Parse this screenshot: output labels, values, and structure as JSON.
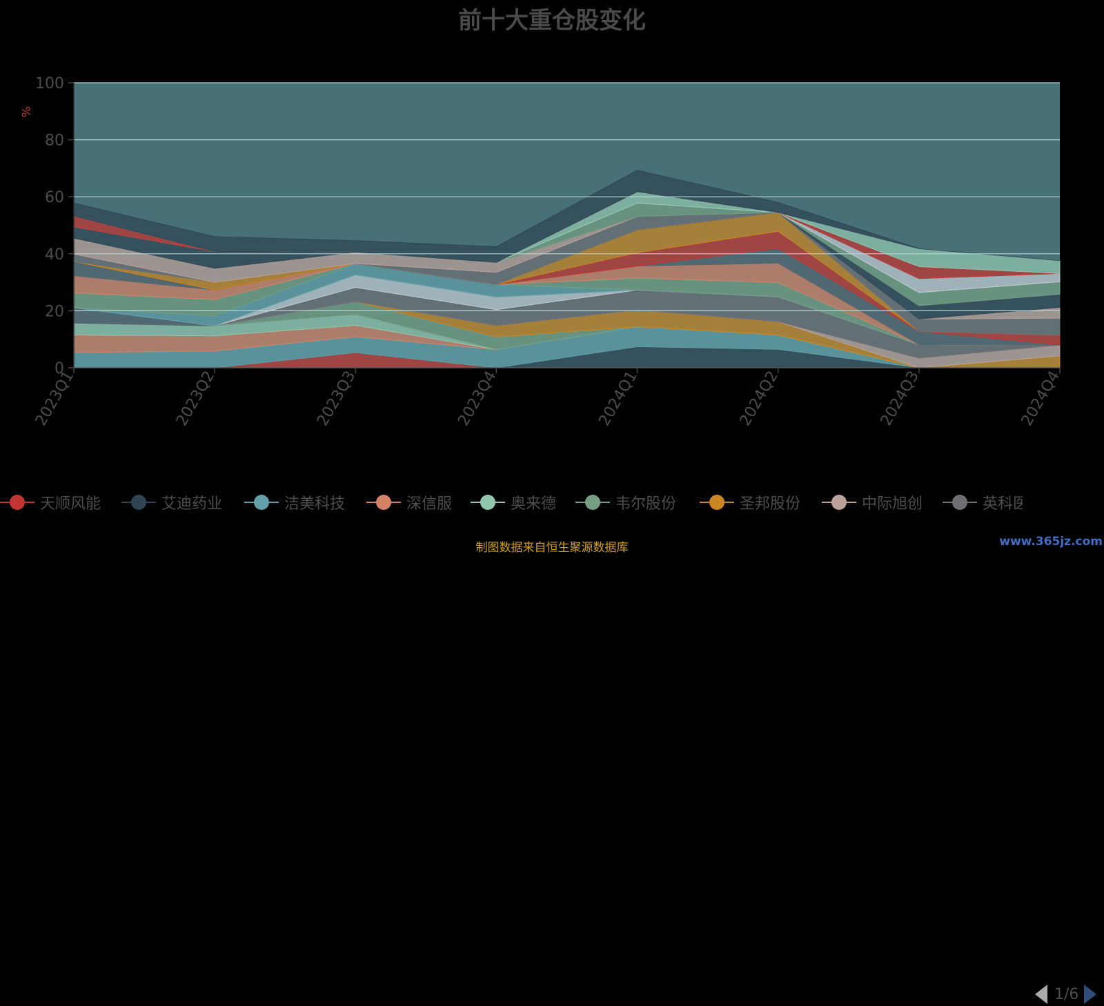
{
  "chart_data": {
    "type": "area",
    "title": "前十大重仓股变化",
    "ylabel": "%",
    "ylim": [
      0,
      100
    ],
    "yticks": [
      "0",
      "20",
      "40",
      "60",
      "80",
      "100"
    ],
    "categories": [
      "2023Q1",
      "2023Q2",
      "2023Q3",
      "2023Q4",
      "2024Q1",
      "2024Q2",
      "2024Q3",
      "2024Q4"
    ],
    "stacked": true,
    "grid": true,
    "plot_background": "#477177",
    "series": [
      {
        "name": "天顺风能",
        "color": "#c23531",
        "values": [
          0,
          0,
          5.3,
          0,
          0,
          0,
          0,
          0
        ]
      },
      {
        "name": "艾迪药业",
        "color": "#2f4554",
        "values": [
          0,
          0,
          0,
          0,
          7.4,
          6.5,
          0,
          0
        ]
      },
      {
        "name": "洁美科技",
        "color": "#61a0a8",
        "values": [
          5.3,
          5.9,
          5.6,
          6.4,
          7.0,
          5.0,
          0,
          0
        ]
      },
      {
        "name": "深信服",
        "color": "#d48265",
        "values": [
          6.2,
          5.3,
          4.0,
          0,
          0,
          0,
          0,
          0
        ]
      },
      {
        "name": "奥来德",
        "color": "#91c7ae",
        "values": [
          4.2,
          3.5,
          3.8,
          0,
          0,
          0,
          0,
          0
        ]
      },
      {
        "name": "韦尔股份",
        "color": "#749f83",
        "values": [
          0,
          0,
          4.5,
          4.4,
          0,
          0,
          0,
          0
        ]
      },
      {
        "name": "圣邦股份",
        "color": "#ca8622",
        "values": [
          0,
          0,
          0,
          4.0,
          5.9,
          4.7,
          0,
          4.2
        ]
      },
      {
        "name": "中际旭创",
        "color": "#bda29a",
        "values": [
          0,
          0,
          0,
          0,
          0,
          0,
          3.4,
          3.8
        ]
      },
      {
        "name": "英科医疗",
        "color": "#6e7074",
        "values": [
          0,
          0,
          5.0,
          5.6,
          7.0,
          8.7,
          4.7,
          0
        ]
      },
      {
        "name": "",
        "color": "#546570",
        "values": [
          5.4,
          0,
          0,
          0,
          0,
          0,
          0,
          0
        ]
      },
      {
        "name": "",
        "color": "#c4ccd3",
        "values": [
          0,
          0,
          4.4,
          4.4,
          0,
          0,
          0,
          0
        ]
      },
      {
        "name": "",
        "color": "#61a0a8",
        "values": [
          0,
          3.5,
          4.0,
          4.4,
          0,
          0,
          0,
          0
        ]
      },
      {
        "name": "",
        "color": "#749f83",
        "values": [
          5.2,
          5.7,
          0,
          0,
          4.2,
          5.0,
          0,
          0
        ]
      },
      {
        "name": "",
        "color": "#d48265",
        "values": [
          6.0,
          3.4,
          0,
          0,
          4.2,
          6.8,
          0,
          0
        ]
      },
      {
        "name": "",
        "color": "#546570",
        "values": [
          5.0,
          0,
          0,
          0,
          0,
          5.2,
          4.7,
          0
        ]
      },
      {
        "name": "",
        "color": "#c23531",
        "values": [
          0,
          0,
          0,
          0,
          4.7,
          6.0,
          0,
          3.4
        ]
      },
      {
        "name": "",
        "color": "#ca8622",
        "values": [
          0,
          2.7,
          0,
          0,
          8.0,
          6.6,
          0,
          0
        ]
      },
      {
        "name": "",
        "color": "#6e7074",
        "values": [
          2.6,
          0,
          0,
          4.3,
          4.7,
          0,
          4.3,
          6.0
        ]
      },
      {
        "name": "",
        "color": "#bda29a",
        "values": [
          5.6,
          4.9,
          4.0,
          3.5,
          0,
          0,
          0,
          3.8
        ]
      },
      {
        "name": "",
        "color": "#2f4554",
        "values": [
          4.0,
          5.9,
          0,
          0,
          0,
          0,
          4.7,
          4.6
        ]
      },
      {
        "name": "",
        "color": "#749f83",
        "values": [
          0,
          0,
          0,
          0,
          4.7,
          0,
          4.6,
          4.4
        ]
      },
      {
        "name": "",
        "color": "#c4ccd3",
        "values": [
          0,
          0,
          0,
          0,
          0,
          0,
          4.9,
          2.9
        ]
      },
      {
        "name": "",
        "color": "#91c7ae",
        "values": [
          0,
          0,
          0,
          0,
          4.0,
          0,
          0,
          0
        ]
      },
      {
        "name": "",
        "color": "#6e7074",
        "values": [
          0,
          0,
          0,
          0,
          0,
          0,
          0,
          0
        ]
      },
      {
        "name": "",
        "color": "#c23531",
        "values": [
          3.8,
          0,
          0,
          0,
          0,
          0,
          4.2,
          0
        ]
      },
      {
        "name": "",
        "color": "#91c7ae",
        "values": [
          0,
          0,
          0,
          0,
          0,
          0,
          6.3,
          4.5
        ]
      },
      {
        "name": "",
        "color": "#2f4554",
        "values": [
          4.5,
          5.2,
          4.0,
          5.5,
          7.5,
          3.5,
          0,
          0
        ]
      }
    ]
  },
  "legend": {
    "items": [
      {
        "label": "天顺风能",
        "color": "#c23531"
      },
      {
        "label": "艾迪药业",
        "color": "#2f4554"
      },
      {
        "label": "洁美科技",
        "color": "#61a0a8"
      },
      {
        "label": "深信服",
        "color": "#d48265"
      },
      {
        "label": "奥来德",
        "color": "#91c7ae"
      },
      {
        "label": "韦尔股份",
        "color": "#749f83"
      },
      {
        "label": "圣邦股份",
        "color": "#ca8622"
      },
      {
        "label": "中际旭创",
        "color": "#bda29a"
      },
      {
        "label": "英科医疗",
        "color": "#6e7074"
      }
    ],
    "page_text": "1/6"
  },
  "footer": {
    "source": "制图数据来自恒生聚源数据库",
    "watermark": "www.365jz.com"
  }
}
